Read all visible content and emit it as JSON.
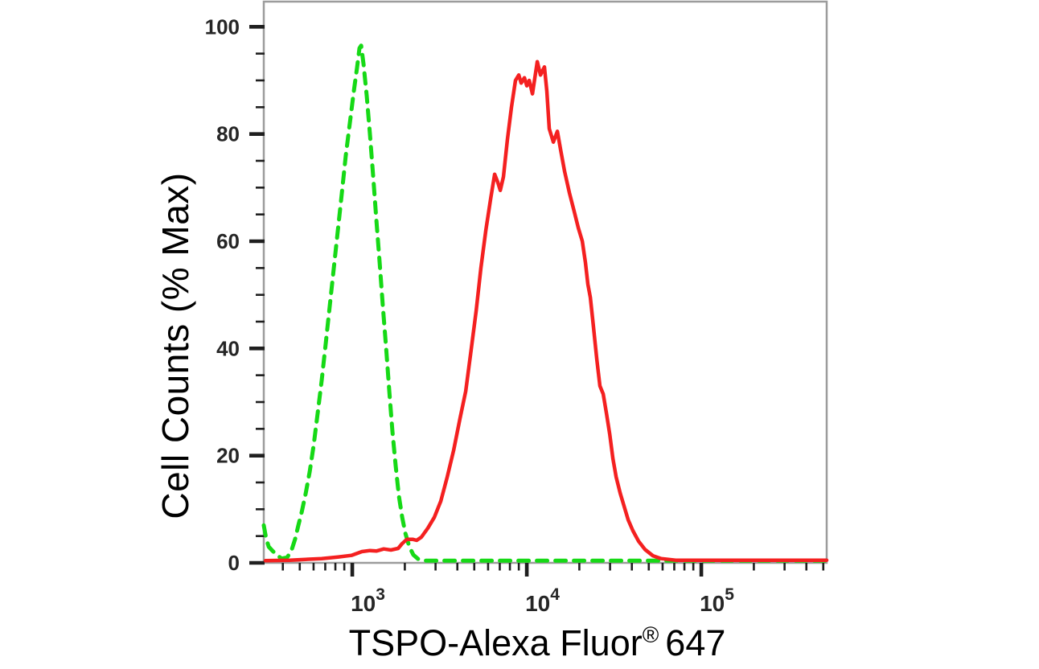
{
  "figure": {
    "background": "#ffffff",
    "border_color": "#9c9c9c",
    "tick_color": "#1f1f1f"
  },
  "chart_data": {
    "type": "line",
    "subtype": "flow-cytometry-overlay-histogram",
    "title": "",
    "xlabel_main": "TSPO-Alexa Fluor",
    "xlabel_registered": "®",
    "xlabel_suffix": "647",
    "ylabel": "Cell Counts (% Max)",
    "x_scale": "log",
    "grid": false,
    "legend": null,
    "xlim": [
      311,
      523000
    ],
    "ylim": [
      0,
      104.7
    ],
    "y_major_ticks": [
      {
        "value": 0,
        "label": "0"
      },
      {
        "value": 20,
        "label": "20"
      },
      {
        "value": 40,
        "label": "40"
      },
      {
        "value": 60,
        "label": "60"
      },
      {
        "value": 80,
        "label": "80"
      },
      {
        "value": 100,
        "label": "100"
      }
    ],
    "y_minor_step": 5,
    "x_major_ticks": [
      {
        "value": 1000,
        "mantissa": "10",
        "exponent": "3"
      },
      {
        "value": 10000,
        "mantissa": "10",
        "exponent": "4"
      },
      {
        "value": 100000,
        "mantissa": "10",
        "exponent": "5"
      }
    ],
    "x_minor_ticks": [
      400,
      500,
      600,
      700,
      800,
      900,
      2000,
      3000,
      4000,
      5000,
      6000,
      7000,
      8000,
      9000,
      20000,
      30000,
      40000,
      50000,
      60000,
      70000,
      80000,
      90000,
      200000,
      300000,
      400000,
      500000
    ],
    "series": [
      {
        "id": "green-dashed-curve",
        "color": "#16d916",
        "style": "dashed",
        "stroke_width": 5,
        "points": [
          [
            311,
            7
          ],
          [
            321,
            4.5
          ],
          [
            332,
            3
          ],
          [
            350,
            2.2
          ],
          [
            369,
            1.5
          ],
          [
            393,
            0.8
          ],
          [
            423,
            1.0
          ],
          [
            447,
            2.2
          ],
          [
            471,
            4.5
          ],
          [
            491,
            7
          ],
          [
            513,
            9.5
          ],
          [
            541,
            13
          ],
          [
            570,
            17
          ],
          [
            601,
            22
          ],
          [
            634,
            28
          ],
          [
            668,
            34
          ],
          [
            705,
            41
          ],
          [
            743,
            48
          ],
          [
            784,
            55
          ],
          [
            826,
            62
          ],
          [
            871,
            69
          ],
          [
            918,
            76
          ],
          [
            968,
            82
          ],
          [
            1021,
            88
          ],
          [
            1066,
            92.5
          ],
          [
            1099,
            96
          ],
          [
            1124,
            96.5
          ],
          [
            1161,
            93
          ],
          [
            1211,
            87
          ],
          [
            1262,
            80
          ],
          [
            1318,
            72
          ],
          [
            1374,
            64
          ],
          [
            1435,
            56
          ],
          [
            1496,
            48
          ],
          [
            1563,
            40
          ],
          [
            1630,
            32
          ],
          [
            1698,
            24.5
          ],
          [
            1774,
            18
          ],
          [
            1849,
            12.5
          ],
          [
            1932,
            8.5
          ],
          [
            2014,
            5.5
          ],
          [
            2123,
            3
          ],
          [
            2239,
            1.5
          ],
          [
            2388,
            0.7
          ],
          [
            2655,
            0.4
          ],
          [
            5583,
            0.4
          ],
          [
            16100,
            0.4
          ],
          [
            79250,
            0.4
          ],
          [
            250000,
            0.4
          ],
          [
            523000,
            0.4
          ]
        ]
      },
      {
        "id": "red-solid-curve",
        "color": "#f42020",
        "style": "solid",
        "stroke_width": 4.5,
        "points": [
          [
            318,
            0.4
          ],
          [
            438,
            0.5
          ],
          [
            668,
            0.8
          ],
          [
            826,
            1.1
          ],
          [
            989,
            1.4
          ],
          [
            1135,
            2.1
          ],
          [
            1262,
            2.3
          ],
          [
            1374,
            2.2
          ],
          [
            1514,
            2.6
          ],
          [
            1664,
            2.4
          ],
          [
            1832,
            2.7
          ],
          [
            1931,
            3.6
          ],
          [
            2056,
            4.4
          ],
          [
            2218,
            4.4
          ],
          [
            2338,
            4.2
          ],
          [
            2489,
            4.8
          ],
          [
            2711,
            6.5
          ],
          [
            2951,
            8.5
          ],
          [
            3214,
            11.5
          ],
          [
            3499,
            16
          ],
          [
            3810,
            21
          ],
          [
            4148,
            27
          ],
          [
            4467,
            32
          ],
          [
            4808,
            40
          ],
          [
            5128,
            47
          ],
          [
            5458,
            55
          ],
          [
            5821,
            62
          ],
          [
            6209,
            68
          ],
          [
            6546,
            72.5
          ],
          [
            6823,
            71
          ],
          [
            7047,
            69.5
          ],
          [
            7345,
            72
          ],
          [
            7745,
            79
          ],
          [
            8166,
            85
          ],
          [
            8610,
            90
          ],
          [
            8995,
            91
          ],
          [
            9290,
            89.5
          ],
          [
            9686,
            90.5
          ],
          [
            10000,
            89
          ],
          [
            10328,
            90
          ],
          [
            10772,
            87.5
          ],
          [
            11482,
            93.5
          ],
          [
            11975,
            91
          ],
          [
            12618,
            92.5
          ],
          [
            13032,
            88
          ],
          [
            13455,
            81
          ],
          [
            14190,
            78.5
          ],
          [
            14962,
            80.5
          ],
          [
            15631,
            77
          ],
          [
            16475,
            73
          ],
          [
            17545,
            69
          ],
          [
            18707,
            65.5
          ],
          [
            19724,
            62.5
          ],
          [
            20794,
            60
          ],
          [
            21690,
            56
          ],
          [
            22387,
            52
          ],
          [
            23121,
            49.5
          ],
          [
            24099,
            44
          ],
          [
            25177,
            38
          ],
          [
            26242,
            33
          ],
          [
            27416,
            31.5
          ],
          [
            28576,
            28
          ],
          [
            29854,
            24
          ],
          [
            31117,
            19.5
          ],
          [
            32509,
            16
          ],
          [
            34277,
            13
          ],
          [
            36141,
            10.5
          ],
          [
            38107,
            8
          ],
          [
            40551,
            6
          ],
          [
            43744,
            4
          ],
          [
            47541,
            2.5
          ],
          [
            52906,
            1.3
          ],
          [
            58884,
            0.8
          ],
          [
            71285,
            0.5
          ],
          [
            108893,
            0.5
          ],
          [
            228905,
            0.5
          ],
          [
            523000,
            0.5
          ]
        ]
      }
    ]
  }
}
